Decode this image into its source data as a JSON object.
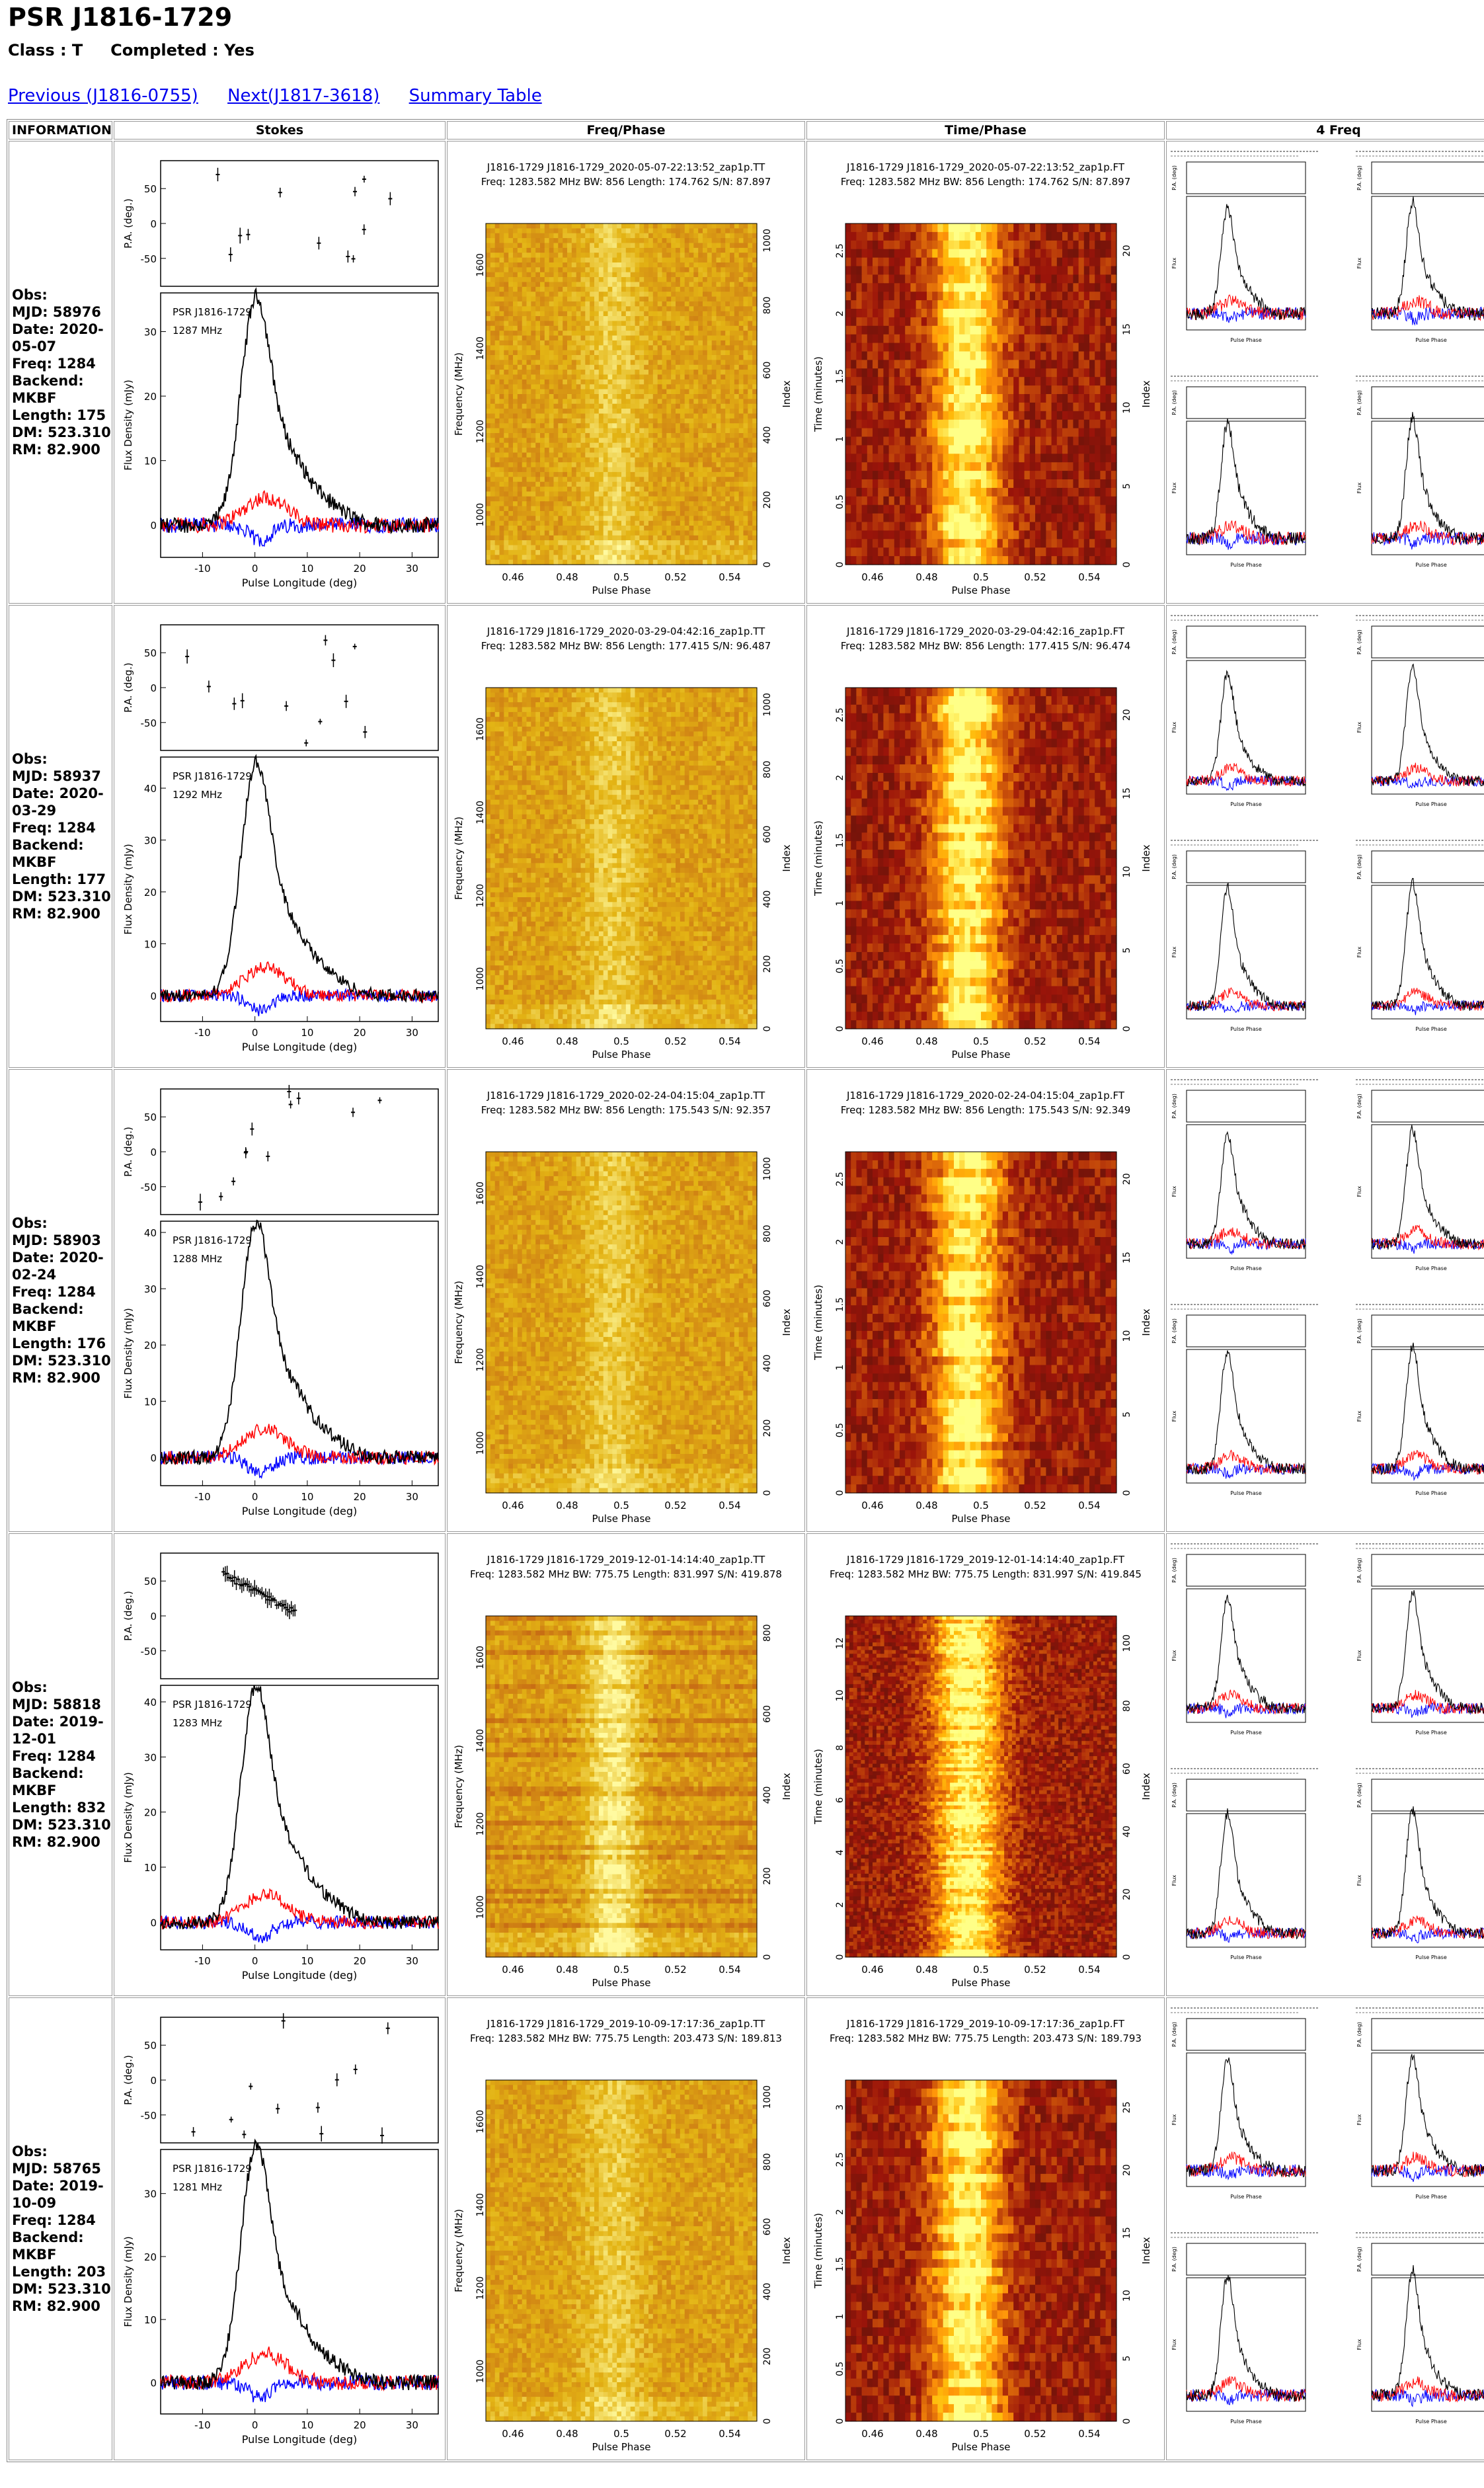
{
  "page": {
    "title": "PSR J1816-1729",
    "class_label": "Class : T",
    "completed_label": "Completed : Yes",
    "nav": {
      "previous": "Previous (J1816-0755)",
      "next": "Next(J1817-3618)",
      "summary": "Summary Table"
    }
  },
  "table": {
    "headers": [
      "INFORMATION",
      "Stokes",
      "Freq/Phase",
      "Time/Phase",
      "4 Freq"
    ]
  },
  "labels": {
    "pa_axis": "P.A. (deg.)",
    "flux_axis": "Flux Density (mJy)",
    "pulse_longitude": "Pulse Longitude (deg)",
    "pulse_phase": "Pulse Phase",
    "frequency_axis": "Frequency (MHz)",
    "time_axis": "Time (minutes)",
    "index_axis": "Index",
    "psr_name": "PSR J1816-1729",
    "flux_short": "Flux",
    "pa_short": "P.A. (deg)",
    "phase_ticks": [
      "0.46",
      "0.48",
      "0.5",
      "0.52",
      "0.54"
    ],
    "long_ticks": [
      "-10",
      "0",
      "10",
      "20",
      "30"
    ],
    "freq_ticks": [
      "1000",
      "1200",
      "1400",
      "1600"
    ]
  },
  "colors": {
    "total": "#000000",
    "linear": "#ff0000",
    "circular": "#0000ff"
  },
  "observations": [
    {
      "obs": "Obs:",
      "mjd": "MJD: 58976",
      "date": "Date: 2020-05-07",
      "freq": "Freq: 1284",
      "backend": "Backend: MKBF",
      "length": "Length: 175",
      "dm": "DM: 523.310",
      "rm": "RM: 82.900",
      "stokes_freq": "1287 MHz",
      "fp_title": "J1816-1729 J1816-1729_2020-05-07-22:13:52_zap1p.TT",
      "fp_sub": "Freq: 1283.582 MHz BW: 856 Length: 174.762 S/N: 87.897",
      "tp_title": "J1816-1729 J1816-1729_2020-05-07-22:13:52_zap1p.FT",
      "tp_sub": "Freq: 1283.582 MHz BW: 856 Length: 174.762 S/N: 87.897",
      "flux_ticks": [
        "0",
        "10",
        "20",
        "30"
      ],
      "time_ticks": [
        "0",
        "0.5",
        "1",
        "1.5",
        "2",
        "2.5"
      ],
      "index_ticks": [
        "0",
        "200",
        "400",
        "600",
        "800",
        "1000"
      ],
      "tindex_ticks": [
        "0",
        "5",
        "10",
        "15",
        "20"
      ],
      "peak": 33,
      "ymax": 36
    },
    {
      "obs": "Obs:",
      "mjd": "MJD: 58937",
      "date": "Date: 2020-03-29",
      "freq": "Freq: 1284",
      "backend": "Backend: MKBF",
      "length": "Length: 177",
      "dm": "DM: 523.310",
      "rm": "RM: 82.900",
      "stokes_freq": "1292 MHz",
      "fp_title": "J1816-1729 J1816-1729_2020-03-29-04:42:16_zap1p.TT",
      "fp_sub": "Freq: 1283.582 MHz BW: 856 Length: 177.415 S/N: 96.487",
      "tp_title": "J1816-1729 J1816-1729_2020-03-29-04:42:16_zap1p.FT",
      "tp_sub": "Freq: 1283.582 MHz BW: 856 Length: 177.415 S/N: 96.474",
      "flux_ticks": [
        "0",
        "10",
        "20",
        "30",
        "40"
      ],
      "time_ticks": [
        "0",
        "0.5",
        "1",
        "1.5",
        "2",
        "2.5"
      ],
      "index_ticks": [
        "0",
        "200",
        "400",
        "600",
        "800",
        "1000"
      ],
      "tindex_ticks": [
        "0",
        "5",
        "10",
        "15",
        "20"
      ],
      "peak": 42,
      "ymax": 46
    },
    {
      "obs": "Obs:",
      "mjd": "MJD: 58903",
      "date": "Date: 2020-02-24",
      "freq": "Freq: 1284",
      "backend": "Backend: MKBF",
      "length": "Length: 176",
      "dm": "DM: 523.310",
      "rm": "RM: 82.900",
      "stokes_freq": "1288 MHz",
      "fp_title": "J1816-1729 J1816-1729_2020-02-24-04:15:04_zap1p.TT",
      "fp_sub": "Freq: 1283.582 MHz BW: 856 Length: 175.543 S/N: 92.357",
      "tp_title": "J1816-1729 J1816-1729_2020-02-24-04:15:04_zap1p.FT",
      "tp_sub": "Freq: 1283.582 MHz BW: 856 Length: 175.543 S/N: 92.349",
      "flux_ticks": [
        "0",
        "10",
        "20",
        "30",
        "40"
      ],
      "time_ticks": [
        "0",
        "0.5",
        "1",
        "1.5",
        "2",
        "2.5"
      ],
      "index_ticks": [
        "0",
        "200",
        "400",
        "600",
        "800",
        "1000"
      ],
      "tindex_ticks": [
        "0",
        "5",
        "10",
        "15",
        "20"
      ],
      "peak": 39,
      "ymax": 42
    },
    {
      "obs": "Obs:",
      "mjd": "MJD: 58818",
      "date": "Date: 2019-12-01",
      "freq": "Freq: 1284",
      "backend": "Backend: MKBF",
      "length": "Length: 832",
      "dm": "DM: 523.310",
      "rm": "RM: 82.900",
      "stokes_freq": "1283 MHz",
      "fp_title": "J1816-1729 J1816-1729_2019-12-01-14:14:40_zap1p.TT",
      "fp_sub": "Freq: 1283.582 MHz BW: 775.75 Length: 831.997 S/N: 419.878",
      "tp_title": "J1816-1729 J1816-1729_2019-12-01-14:14:40_zap1p.FT",
      "tp_sub": "Freq: 1283.582 MHz BW: 775.75 Length: 831.997 S/N: 419.845",
      "flux_ticks": [
        "0",
        "10",
        "20",
        "30",
        "40"
      ],
      "time_ticks": [
        "0",
        "2",
        "4",
        "6",
        "8",
        "10",
        "12"
      ],
      "index_ticks": [
        "0",
        "200",
        "400",
        "600",
        "800"
      ],
      "tindex_ticks": [
        "0",
        "20",
        "40",
        "60",
        "80",
        "100"
      ],
      "peak": 40,
      "ymax": 43
    },
    {
      "obs": "Obs:",
      "mjd": "MJD: 58765",
      "date": "Date: 2019-10-09",
      "freq": "Freq: 1284",
      "backend": "Backend: MKBF",
      "length": "Length: 203",
      "dm": "DM: 523.310",
      "rm": "RM: 82.900",
      "stokes_freq": "1281 MHz",
      "fp_title": "J1816-1729 J1816-1729_2019-10-09-17:17:36_zap1p.TT",
      "fp_sub": "Freq: 1283.582 MHz BW: 775.75 Length: 203.473 S/N: 189.813",
      "tp_title": "J1816-1729 J1816-1729_2019-10-09-17:17:36_zap1p.FT",
      "tp_sub": "Freq: 1283.582 MHz BW: 775.75 Length: 203.473 S/N: 189.793",
      "flux_ticks": [
        "0",
        "10",
        "20",
        "30"
      ],
      "time_ticks": [
        "0",
        "0.5",
        "1",
        "1.5",
        "2",
        "2.5",
        "3"
      ],
      "index_ticks": [
        "0",
        "200",
        "400",
        "600",
        "800",
        "1000"
      ],
      "tindex_ticks": [
        "0",
        "5",
        "10",
        "15",
        "20",
        "25"
      ],
      "peak": 35,
      "ymax": 37
    }
  ]
}
